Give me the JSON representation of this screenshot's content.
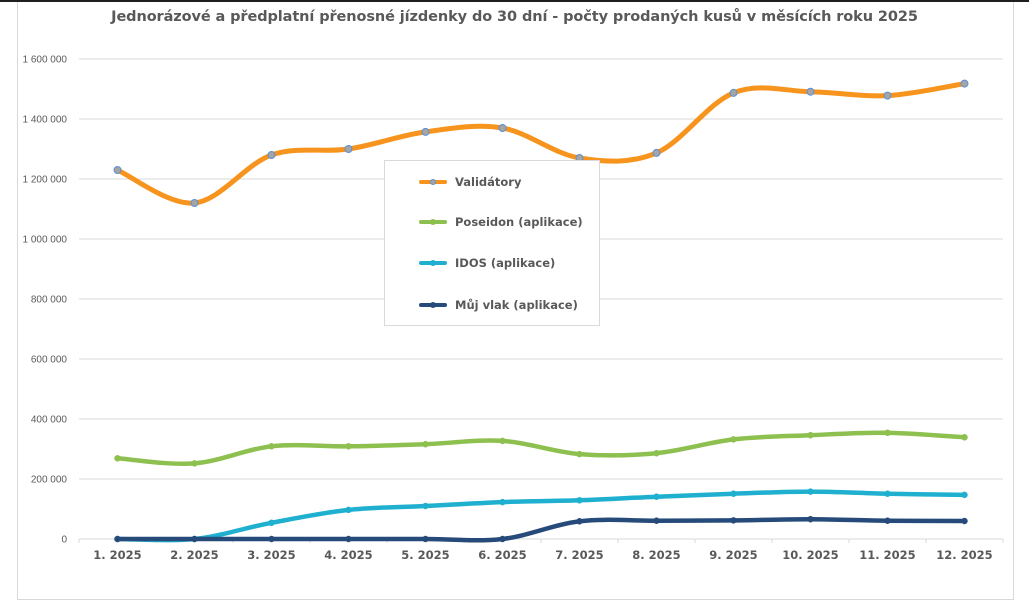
{
  "chart_data": {
    "type": "line",
    "title": "Jednorázové a předplatní přenosné jízdenky do 30 dní - počty prodaných kusů v měsících roku 2025",
    "xlabel": "",
    "ylabel": "",
    "ylim": [
      0,
      1600000
    ],
    "yticks": [
      0,
      200000,
      400000,
      600000,
      800000,
      1000000,
      1200000,
      1400000,
      1600000
    ],
    "ytick_labels": [
      "0",
      "200 000",
      "400 000",
      "600 000",
      "800 000",
      "1 000 000",
      "1 200 000",
      "1 400 000",
      "1 600 000"
    ],
    "grid": true,
    "legend_position": "center-left",
    "smooth": true,
    "categories": [
      "1. 2025",
      "2. 2025",
      "3. 2025",
      "4. 2025",
      "5. 2025",
      "6. 2025",
      "7. 2025",
      "8. 2025",
      "9. 2025",
      "10. 2025",
      "11. 2025",
      "12. 2025"
    ],
    "series": [
      {
        "name": "Validátory",
        "color": "#f7941d",
        "marker_fill": "#a5a5a5",
        "marker_stroke": "#5b8fd6",
        "values": [
          1230000,
          1120000,
          1280000,
          1300000,
          1357000,
          1370000,
          1270000,
          1287000,
          1487000,
          1491000,
          1478000,
          1518000
        ]
      },
      {
        "name": "Poseidon (aplikace)",
        "color": "#8dc04f",
        "marker_fill": "#8dc04f",
        "marker_stroke": "#8dc04f",
        "values": [
          269000,
          252000,
          309000,
          309000,
          316000,
          327000,
          283000,
          286000,
          332000,
          346000,
          354000,
          339000
        ]
      },
      {
        "name": "IDOS (aplikace)",
        "color": "#1fb0cf",
        "marker_fill": "#1fb0cf",
        "marker_stroke": "#1fb0cf",
        "values": [
          0,
          0,
          54000,
          97000,
          110000,
          123000,
          129000,
          141000,
          151000,
          158000,
          151000,
          147000
        ]
      },
      {
        "name": "Můj vlak (aplikace)",
        "color": "#264a7a",
        "marker_fill": "#264a7a",
        "marker_stroke": "#264a7a",
        "values": [
          0,
          0,
          0,
          0,
          0,
          0,
          59000,
          61000,
          62000,
          66000,
          61000,
          60000
        ]
      }
    ]
  }
}
